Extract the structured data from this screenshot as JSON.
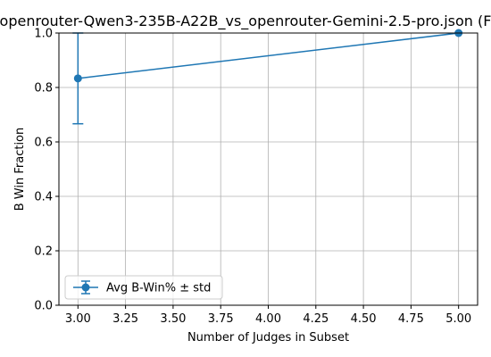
{
  "chart_data": {
    "type": "line",
    "title": "openrouter-Qwen3-235B-A22B_vs_openrouter-Gemini-2.5-pro.json (F",
    "xlabel": "Number of Judges in Subset",
    "ylabel": "B Win Fraction",
    "xlim": [
      2.9,
      5.1
    ],
    "ylim": [
      0.0,
      1.0
    ],
    "xticks": [
      "3.00",
      "3.25",
      "3.50",
      "3.75",
      "4.00",
      "4.25",
      "4.50",
      "4.75",
      "5.00"
    ],
    "xtick_values": [
      3.0,
      3.25,
      3.5,
      3.75,
      4.0,
      4.25,
      4.5,
      4.75,
      5.0
    ],
    "yticks": [
      "0.0",
      "0.2",
      "0.4",
      "0.6",
      "0.8",
      "1.0"
    ],
    "ytick_values": [
      0.0,
      0.2,
      0.4,
      0.6,
      0.8,
      1.0
    ],
    "grid": true,
    "legend_position": "lower-left",
    "series": [
      {
        "name": "Avg B-Win% ± std",
        "color": "#1f77b4",
        "x": [
          3,
          5
        ],
        "y": [
          0.8333,
          1.0
        ],
        "std": [
          0.1667,
          0.0
        ]
      }
    ]
  }
}
